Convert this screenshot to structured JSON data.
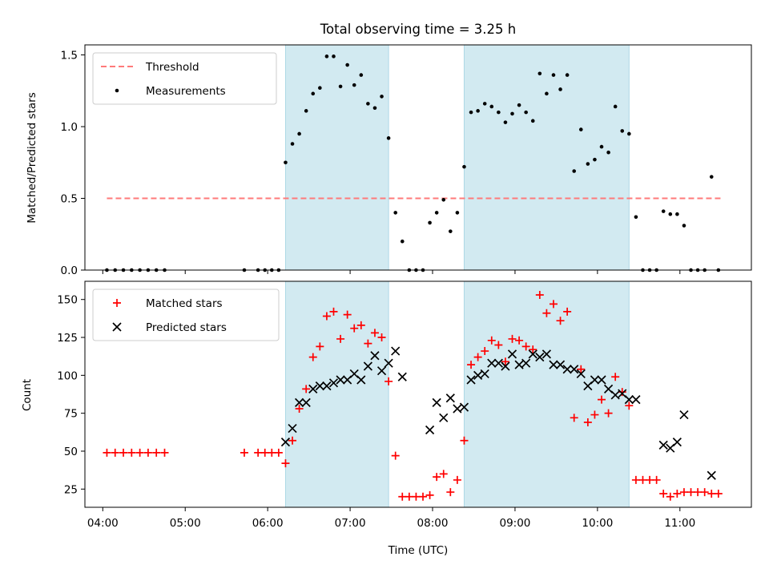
{
  "chart_data": {
    "type": "scatter",
    "title": "Total observing time = 3.25 h",
    "xlabel": "Time (UTC)",
    "x_ticks": [
      "04:00",
      "05:00",
      "06:00",
      "07:00",
      "08:00",
      "09:00",
      "10:00",
      "11:00"
    ],
    "xlim": [
      "03:47",
      "11:52"
    ],
    "observing_windows": [
      {
        "start": "06:13",
        "end": "07:28"
      },
      {
        "start": "08:23",
        "end": "10:23"
      }
    ],
    "window_color": "#add8e6",
    "panels": [
      {
        "ylabel": "Matched/Predicted stars",
        "ylim": [
          0,
          1.57
        ],
        "y_ticks": [
          "0.0",
          "0.5",
          "1.0",
          "1.5"
        ],
        "legend_position": "top-left",
        "threshold": {
          "name": "Threshold",
          "value": 0.5,
          "x_start": "04:03",
          "x_end": "11:30",
          "color": "#ff7a7a"
        },
        "series": [
          {
            "name": "Measurements",
            "marker": "dot",
            "color": "#000000",
            "points": [
              [
                "04:03",
                0
              ],
              [
                "04:09",
                0
              ],
              [
                "04:15",
                0
              ],
              [
                "04:21",
                0
              ],
              [
                "04:27",
                0
              ],
              [
                "04:33",
                0
              ],
              [
                "04:39",
                0
              ],
              [
                "04:45",
                0
              ],
              [
                "05:43",
                0
              ],
              [
                "05:53",
                0
              ],
              [
                "05:58",
                0
              ],
              [
                "06:03",
                0
              ],
              [
                "06:08",
                0
              ],
              [
                "06:13",
                0.75
              ],
              [
                "06:18",
                0.88
              ],
              [
                "06:23",
                0.95
              ],
              [
                "06:28",
                1.11
              ],
              [
                "06:33",
                1.23
              ],
              [
                "06:38",
                1.27
              ],
              [
                "06:43",
                1.49
              ],
              [
                "06:48",
                1.49
              ],
              [
                "06:53",
                1.28
              ],
              [
                "06:58",
                1.43
              ],
              [
                "07:03",
                1.29
              ],
              [
                "07:08",
                1.36
              ],
              [
                "07:13",
                1.16
              ],
              [
                "07:18",
                1.13
              ],
              [
                "07:23",
                1.21
              ],
              [
                "07:28",
                0.92
              ],
              [
                "07:33",
                0.4
              ],
              [
                "07:38",
                0.2
              ],
              [
                "07:43",
                0
              ],
              [
                "07:48",
                0
              ],
              [
                "07:53",
                0
              ],
              [
                "07:58",
                0.33
              ],
              [
                "08:03",
                0.4
              ],
              [
                "08:08",
                0.49
              ],
              [
                "08:13",
                0.27
              ],
              [
                "08:18",
                0.4
              ],
              [
                "08:23",
                0.72
              ],
              [
                "08:28",
                1.1
              ],
              [
                "08:33",
                1.11
              ],
              [
                "08:38",
                1.16
              ],
              [
                "08:43",
                1.14
              ],
              [
                "08:48",
                1.1
              ],
              [
                "08:53",
                1.03
              ],
              [
                "08:58",
                1.09
              ],
              [
                "09:03",
                1.15
              ],
              [
                "09:08",
                1.1
              ],
              [
                "09:13",
                1.04
              ],
              [
                "09:18",
                1.37
              ],
              [
                "09:23",
                1.23
              ],
              [
                "09:28",
                1.36
              ],
              [
                "09:33",
                1.26
              ],
              [
                "09:38",
                1.36
              ],
              [
                "09:43",
                0.69
              ],
              [
                "09:48",
                0.98
              ],
              [
                "09:53",
                0.74
              ],
              [
                "09:58",
                0.77
              ],
              [
                "10:03",
                0.86
              ],
              [
                "10:08",
                0.82
              ],
              [
                "10:13",
                1.14
              ],
              [
                "10:18",
                0.97
              ],
              [
                "10:23",
                0.95
              ],
              [
                "10:28",
                0.37
              ],
              [
                "10:33",
                0
              ],
              [
                "10:38",
                0
              ],
              [
                "10:43",
                0
              ],
              [
                "10:48",
                0.41
              ],
              [
                "10:53",
                0.39
              ],
              [
                "10:58",
                0.39
              ],
              [
                "11:03",
                0.31
              ],
              [
                "11:08",
                0
              ],
              [
                "11:13",
                0
              ],
              [
                "11:18",
                0
              ],
              [
                "11:23",
                0.65
              ],
              [
                "11:28",
                0
              ]
            ]
          }
        ]
      },
      {
        "ylabel": "Count",
        "ylim": [
          13,
          162
        ],
        "y_ticks": [
          "25",
          "50",
          "75",
          "100",
          "125",
          "150"
        ],
        "legend_position": "top-left",
        "series": [
          {
            "name": "Matched stars",
            "marker": "plus",
            "color": "#ff0000",
            "points": [
              [
                "04:03",
                49
              ],
              [
                "04:09",
                49
              ],
              [
                "04:15",
                49
              ],
              [
                "04:21",
                49
              ],
              [
                "04:27",
                49
              ],
              [
                "04:33",
                49
              ],
              [
                "04:39",
                49
              ],
              [
                "04:45",
                49
              ],
              [
                "05:43",
                49
              ],
              [
                "05:53",
                49
              ],
              [
                "05:58",
                49
              ],
              [
                "06:03",
                49
              ],
              [
                "06:08",
                49
              ],
              [
                "06:13",
                42
              ],
              [
                "06:18",
                57
              ],
              [
                "06:23",
                78
              ],
              [
                "06:28",
                91
              ],
              [
                "06:33",
                112
              ],
              [
                "06:38",
                119
              ],
              [
                "06:43",
                139
              ],
              [
                "06:48",
                142
              ],
              [
                "06:53",
                124
              ],
              [
                "06:58",
                140
              ],
              [
                "07:03",
                131
              ],
              [
                "07:08",
                133
              ],
              [
                "07:13",
                121
              ],
              [
                "07:18",
                128
              ],
              [
                "07:23",
                125
              ],
              [
                "07:28",
                96
              ],
              [
                "07:33",
                47
              ],
              [
                "07:38",
                20
              ],
              [
                "07:43",
                20
              ],
              [
                "07:48",
                20
              ],
              [
                "07:53",
                20
              ],
              [
                "07:58",
                21
              ],
              [
                "08:03",
                33
              ],
              [
                "08:08",
                35
              ],
              [
                "08:13",
                23
              ],
              [
                "08:18",
                31
              ],
              [
                "08:23",
                57
              ],
              [
                "08:28",
                107
              ],
              [
                "08:33",
                112
              ],
              [
                "08:38",
                116
              ],
              [
                "08:43",
                123
              ],
              [
                "08:48",
                120
              ],
              [
                "08:53",
                109
              ],
              [
                "08:58",
                124
              ],
              [
                "09:03",
                123
              ],
              [
                "09:08",
                119
              ],
              [
                "09:13",
                117
              ],
              [
                "09:18",
                153
              ],
              [
                "09:23",
                141
              ],
              [
                "09:28",
                147
              ],
              [
                "09:33",
                136
              ],
              [
                "09:38",
                142
              ],
              [
                "09:43",
                72
              ],
              [
                "09:48",
                104
              ],
              [
                "09:53",
                69
              ],
              [
                "09:58",
                74
              ],
              [
                "10:03",
                84
              ],
              [
                "10:08",
                75
              ],
              [
                "10:13",
                99
              ],
              [
                "10:18",
                89
              ],
              [
                "10:23",
                80
              ],
              [
                "10:28",
                31
              ],
              [
                "10:33",
                31
              ],
              [
                "10:38",
                31
              ],
              [
                "10:43",
                31
              ],
              [
                "10:48",
                22
              ],
              [
                "10:53",
                20
              ],
              [
                "10:58",
                22
              ],
              [
                "11:03",
                23
              ],
              [
                "11:08",
                23
              ],
              [
                "11:13",
                23
              ],
              [
                "11:18",
                23
              ],
              [
                "11:23",
                22
              ],
              [
                "11:28",
                22
              ]
            ]
          },
          {
            "name": "Predicted stars",
            "marker": "x",
            "color": "#000000",
            "points": [
              [
                "06:13",
                56
              ],
              [
                "06:18",
                65
              ],
              [
                "06:23",
                82
              ],
              [
                "06:28",
                82
              ],
              [
                "06:33",
                91
              ],
              [
                "06:38",
                93
              ],
              [
                "06:43",
                93
              ],
              [
                "06:48",
                95
              ],
              [
                "06:53",
                97
              ],
              [
                "06:58",
                97
              ],
              [
                "07:03",
                101
              ],
              [
                "07:08",
                97
              ],
              [
                "07:13",
                106
              ],
              [
                "07:18",
                113
              ],
              [
                "07:23",
                103
              ],
              [
                "07:28",
                108
              ],
              [
                "07:33",
                116
              ],
              [
                "07:38",
                99
              ],
              [
                "07:58",
                64
              ],
              [
                "08:03",
                82
              ],
              [
                "08:08",
                72
              ],
              [
                "08:13",
                85
              ],
              [
                "08:18",
                78
              ],
              [
                "08:23",
                79
              ],
              [
                "08:28",
                97
              ],
              [
                "08:33",
                100
              ],
              [
                "08:38",
                101
              ],
              [
                "08:43",
                108
              ],
              [
                "08:48",
                108
              ],
              [
                "08:53",
                106
              ],
              [
                "08:58",
                114
              ],
              [
                "09:03",
                107
              ],
              [
                "09:08",
                108
              ],
              [
                "09:13",
                114
              ],
              [
                "09:18",
                112
              ],
              [
                "09:23",
                114
              ],
              [
                "09:28",
                107
              ],
              [
                "09:33",
                107
              ],
              [
                "09:38",
                104
              ],
              [
                "09:43",
                104
              ],
              [
                "09:48",
                101
              ],
              [
                "09:53",
                93
              ],
              [
                "09:58",
                97
              ],
              [
                "10:03",
                97
              ],
              [
                "10:08",
                91
              ],
              [
                "10:13",
                87
              ],
              [
                "10:18",
                88
              ],
              [
                "10:23",
                84
              ],
              [
                "10:28",
                84
              ],
              [
                "10:48",
                54
              ],
              [
                "10:53",
                52
              ],
              [
                "10:58",
                56
              ],
              [
                "11:03",
                74
              ],
              [
                "11:23",
                34
              ]
            ]
          }
        ]
      }
    ]
  }
}
